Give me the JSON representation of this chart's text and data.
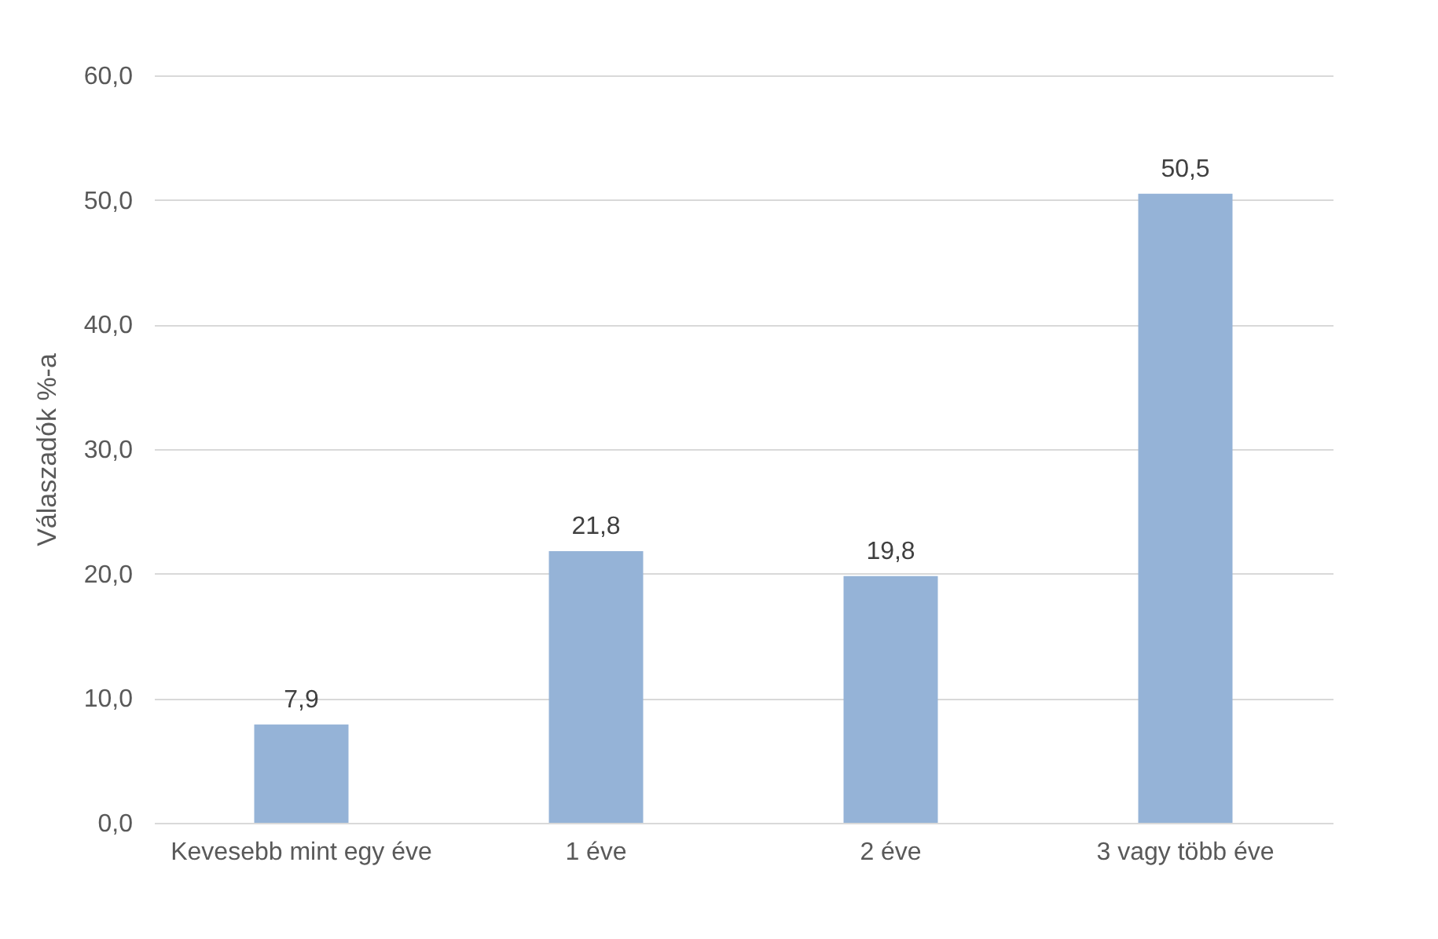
{
  "chart_data": {
    "type": "bar",
    "ylabel": "Válaszadók %-a",
    "categories": [
      "Kevesebb mint egy éve",
      "1 éve",
      "2 éve",
      "3 vagy több éve"
    ],
    "values": [
      7.9,
      21.8,
      19.8,
      50.5
    ],
    "value_labels": [
      "7,9",
      "21,8",
      "19,8",
      "50,5"
    ],
    "color": "#95b3d7",
    "ylim": [
      0,
      60
    ],
    "yticks": [
      {
        "value": 0,
        "label": "0,0"
      },
      {
        "value": 10,
        "label": "10,0"
      },
      {
        "value": 20,
        "label": "20,0"
      },
      {
        "value": 30,
        "label": "30,0"
      },
      {
        "value": 40,
        "label": "40,0"
      },
      {
        "value": 50,
        "label": "50,0"
      },
      {
        "value": 60,
        "label": "60,0"
      }
    ],
    "grid": "y"
  }
}
